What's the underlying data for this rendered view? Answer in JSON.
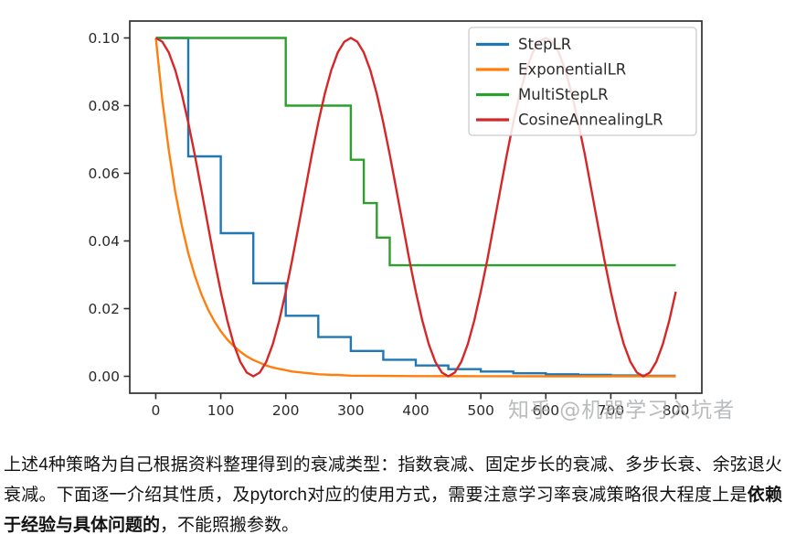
{
  "watermark": "知乎 @机器学习入坑者",
  "paragraph": {
    "normal_1": "上述4种策略为自己根据资料整理得到的衰减类型：指数衰减、固定步长的衰减、多步长衰、余弦退火衰减。下面逐一介绍其性质，及pytorch对应的使用方式，需要注意学习率衰减策略很大程度上是",
    "bold": "依赖于经验与具体问题的",
    "normal_2": "，不能照搬参数。"
  },
  "chart_data": {
    "type": "line",
    "title": "",
    "xlabel": "",
    "ylabel": "",
    "grid": false,
    "legend_position": "upper right",
    "xlim": [
      -40,
      840
    ],
    "ylim": [
      -0.005,
      0.105
    ],
    "xticks": {
      "values": [
        0,
        100,
        200,
        300,
        400,
        500,
        600,
        700,
        800
      ],
      "labels": [
        "0",
        "100",
        "200",
        "300",
        "400",
        "500",
        "600",
        "700",
        "800"
      ]
    },
    "yticks": {
      "values": [
        0.0,
        0.02,
        0.04,
        0.06,
        0.08,
        0.1
      ],
      "labels": [
        "0.00",
        "0.02",
        "0.04",
        "0.06",
        "0.08",
        "0.10"
      ]
    },
    "series": [
      {
        "name": "StepLR",
        "color": "#1f77b4",
        "points": [
          [
            0,
            0.1
          ],
          [
            50,
            0.1
          ],
          [
            50,
            0.065
          ],
          [
            100,
            0.065
          ],
          [
            100,
            0.0423
          ],
          [
            150,
            0.0423
          ],
          [
            150,
            0.0275
          ],
          [
            200,
            0.0275
          ],
          [
            200,
            0.0179
          ],
          [
            250,
            0.0179
          ],
          [
            250,
            0.0116
          ],
          [
            300,
            0.0116
          ],
          [
            300,
            0.0075
          ],
          [
            350,
            0.0075
          ],
          [
            350,
            0.0049
          ],
          [
            400,
            0.0049
          ],
          [
            400,
            0.0032
          ],
          [
            450,
            0.0032
          ],
          [
            450,
            0.0021
          ],
          [
            500,
            0.0021
          ],
          [
            500,
            0.0014
          ],
          [
            550,
            0.0014
          ],
          [
            550,
            0.0009
          ],
          [
            600,
            0.0009
          ],
          [
            600,
            0.0006
          ],
          [
            650,
            0.0006
          ],
          [
            650,
            0.0004
          ],
          [
            700,
            0.0004
          ],
          [
            700,
            0.00025
          ],
          [
            750,
            0.00025
          ],
          [
            750,
            0.00016
          ],
          [
            800,
            0.00016
          ]
        ]
      },
      {
        "name": "ExponentialLR",
        "color": "#ff7f0e",
        "points": [
          [
            0,
            0.1
          ],
          [
            10,
            0.0817
          ],
          [
            20,
            0.0668
          ],
          [
            30,
            0.0545
          ],
          [
            40,
            0.0446
          ],
          [
            50,
            0.0364
          ],
          [
            60,
            0.0298
          ],
          [
            70,
            0.0243
          ],
          [
            80,
            0.0199
          ],
          [
            90,
            0.0163
          ],
          [
            100,
            0.0133
          ],
          [
            110,
            0.0109
          ],
          [
            120,
            0.0089
          ],
          [
            130,
            0.0073
          ],
          [
            140,
            0.0059
          ],
          [
            150,
            0.0048
          ],
          [
            160,
            0.004
          ],
          [
            170,
            0.0032
          ],
          [
            180,
            0.0026
          ],
          [
            190,
            0.0022
          ],
          [
            200,
            0.0018
          ],
          [
            210,
            0.0014
          ],
          [
            220,
            0.0012
          ],
          [
            230,
            0.001
          ],
          [
            240,
            0.0008
          ],
          [
            250,
            0.0006
          ],
          [
            260,
            0.0005
          ],
          [
            270,
            0.0004
          ],
          [
            280,
            0.0004
          ],
          [
            290,
            0.0003
          ],
          [
            300,
            0.0002
          ],
          [
            350,
            0.0001
          ],
          [
            400,
            5e-05
          ],
          [
            500,
            2e-05
          ],
          [
            600,
            1e-05
          ],
          [
            700,
            0.0
          ],
          [
            800,
            0.0
          ]
        ]
      },
      {
        "name": "MultiStepLR",
        "color": "#2ca02c",
        "points": [
          [
            0,
            0.1
          ],
          [
            200,
            0.1
          ],
          [
            200,
            0.08
          ],
          [
            300,
            0.08
          ],
          [
            300,
            0.064
          ],
          [
            320,
            0.064
          ],
          [
            320,
            0.0512
          ],
          [
            340,
            0.0512
          ],
          [
            340,
            0.041
          ],
          [
            360,
            0.041
          ],
          [
            360,
            0.0328
          ],
          [
            800,
            0.0328
          ]
        ]
      },
      {
        "name": "CosineAnnealingLR",
        "color": "#d62728",
        "points": [
          [
            0,
            0.1
          ],
          [
            10,
            0.0989
          ],
          [
            20,
            0.0957
          ],
          [
            30,
            0.0905
          ],
          [
            40,
            0.0835
          ],
          [
            50,
            0.075
          ],
          [
            60,
            0.0655
          ],
          [
            70,
            0.0552
          ],
          [
            80,
            0.0448
          ],
          [
            90,
            0.0345
          ],
          [
            100,
            0.025
          ],
          [
            110,
            0.0165
          ],
          [
            120,
            0.0095
          ],
          [
            130,
            0.0043
          ],
          [
            140,
            0.0011
          ],
          [
            150,
            0.0
          ],
          [
            160,
            0.0011
          ],
          [
            170,
            0.0043
          ],
          [
            180,
            0.0095
          ],
          [
            190,
            0.0165
          ],
          [
            200,
            0.025
          ],
          [
            210,
            0.0345
          ],
          [
            220,
            0.0448
          ],
          [
            230,
            0.0552
          ],
          [
            240,
            0.0655
          ],
          [
            250,
            0.075
          ],
          [
            260,
            0.0835
          ],
          [
            270,
            0.0905
          ],
          [
            280,
            0.0957
          ],
          [
            290,
            0.0989
          ],
          [
            300,
            0.1
          ],
          [
            310,
            0.0989
          ],
          [
            320,
            0.0957
          ],
          [
            330,
            0.0905
          ],
          [
            340,
            0.0835
          ],
          [
            350,
            0.075
          ],
          [
            360,
            0.0655
          ],
          [
            370,
            0.0552
          ],
          [
            380,
            0.0448
          ],
          [
            390,
            0.0345
          ],
          [
            400,
            0.025
          ],
          [
            410,
            0.0165
          ],
          [
            420,
            0.0095
          ],
          [
            430,
            0.0043
          ],
          [
            440,
            0.0011
          ],
          [
            450,
            0.0
          ],
          [
            460,
            0.0011
          ],
          [
            470,
            0.0043
          ],
          [
            480,
            0.0095
          ],
          [
            490,
            0.0165
          ],
          [
            500,
            0.025
          ],
          [
            510,
            0.0345
          ],
          [
            520,
            0.0448
          ],
          [
            530,
            0.0552
          ],
          [
            540,
            0.0655
          ],
          [
            550,
            0.075
          ],
          [
            560,
            0.0835
          ],
          [
            570,
            0.0905
          ],
          [
            580,
            0.0957
          ],
          [
            590,
            0.0989
          ],
          [
            600,
            0.1
          ],
          [
            610,
            0.0989
          ],
          [
            620,
            0.0957
          ],
          [
            630,
            0.0905
          ],
          [
            640,
            0.0835
          ],
          [
            650,
            0.075
          ],
          [
            660,
            0.0655
          ],
          [
            670,
            0.0552
          ],
          [
            680,
            0.0448
          ],
          [
            690,
            0.0345
          ],
          [
            700,
            0.025
          ],
          [
            710,
            0.0165
          ],
          [
            720,
            0.0095
          ],
          [
            730,
            0.0043
          ],
          [
            740,
            0.0011
          ],
          [
            750,
            0.0
          ],
          [
            760,
            0.0011
          ],
          [
            770,
            0.0043
          ],
          [
            780,
            0.0095
          ],
          [
            790,
            0.0165
          ],
          [
            800,
            0.025
          ]
        ]
      }
    ]
  }
}
